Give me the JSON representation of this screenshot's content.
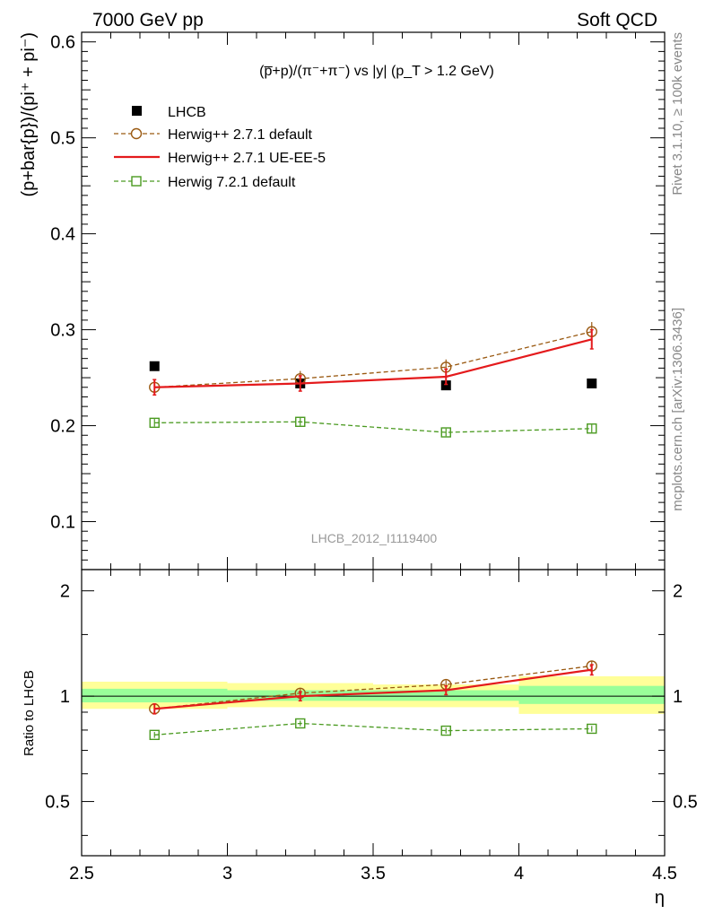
{
  "header": {
    "left": "7000 GeV pp",
    "right": "Soft QCD"
  },
  "side": {
    "rivet": "Rivet 3.1.10, ≥ 100k events",
    "mcplots": "mcplots.cern.ch [arXiv:1306.3436]"
  },
  "chart_data": [
    {
      "type": "line",
      "title": "(p̅+p)/(π⁻+π⁻) vs |y| (p_T > 1.2 GeV)",
      "ylabel": "(p+bar{p})/(pi⁺ + pi⁻)",
      "xlim": [
        2.5,
        4.5
      ],
      "ylim": [
        0.05,
        0.61
      ],
      "yticks": [
        0.1,
        0.2,
        0.3,
        0.4,
        0.5,
        0.6
      ],
      "ytick_labels": [
        "0.1",
        "0.2",
        "0.3",
        "0.4",
        "0.5",
        "0.6"
      ],
      "watermark": "LHCB_2012_I1119400",
      "legend_position": "top-left",
      "x": [
        2.75,
        3.25,
        3.75,
        4.25
      ],
      "series": [
        {
          "name": "LHCB",
          "style": "data",
          "color": "#000000",
          "values": [
            0.262,
            0.244,
            0.242,
            0.244
          ]
        },
        {
          "name": "Herwig++ 2.7.1 default",
          "style": "circle-dashed",
          "color": "#9a5a12",
          "values": [
            0.24,
            0.249,
            0.261,
            0.298
          ],
          "errors": [
            0.008,
            0.008,
            0.008,
            0.01
          ]
        },
        {
          "name": "Herwig++ 2.7.1 UE-EE-5",
          "style": "solid",
          "color": "#e41a1c",
          "values": [
            0.24,
            0.244,
            0.251,
            0.29
          ],
          "errors": [
            0.008,
            0.008,
            0.008,
            0.01
          ]
        },
        {
          "name": "Herwig 7.2.1 default",
          "style": "square-dashed",
          "color": "#4a9a20",
          "values": [
            0.203,
            0.204,
            0.193,
            0.197
          ],
          "errors": [
            0.004,
            0.004,
            0.004,
            0.004
          ]
        }
      ]
    },
    {
      "type": "line",
      "ylabel": "Ratio to LHCB",
      "xlabel": "η",
      "xlim": [
        2.5,
        4.5
      ],
      "ylim": [
        0.35,
        2.3
      ],
      "log_y": true,
      "xticks": [
        2.5,
        3,
        3.5,
        4,
        4.5
      ],
      "xtick_labels": [
        "2.5",
        "3",
        "3.5",
        "4",
        "4.5"
      ],
      "yticks": [
        0.5,
        1,
        2
      ],
      "ytick_labels": [
        "0.5",
        "1",
        "2"
      ],
      "bins": [
        [
          2.5,
          3.0
        ],
        [
          3.0,
          3.5
        ],
        [
          3.5,
          4.0
        ],
        [
          4.0,
          4.5
        ]
      ],
      "band_stat": [
        [
          0.96,
          1.05
        ],
        [
          0.97,
          1.04
        ],
        [
          0.97,
          1.04
        ],
        [
          0.95,
          1.07
        ]
      ],
      "band_total": [
        [
          0.92,
          1.1
        ],
        [
          0.93,
          1.09
        ],
        [
          0.93,
          1.08
        ],
        [
          0.89,
          1.14
        ]
      ],
      "x": [
        2.75,
        3.25,
        3.75,
        4.25
      ],
      "series": [
        {
          "name": "Herwig++ 2.7.1 default",
          "style": "circle-dashed",
          "color": "#9a5a12",
          "values": [
            0.92,
            1.02,
            1.08,
            1.22
          ],
          "errors": [
            0.03,
            0.03,
            0.03,
            0.04
          ]
        },
        {
          "name": "Herwig++ 2.7.1 UE-EE-5",
          "style": "solid",
          "color": "#e41a1c",
          "values": [
            0.92,
            1.0,
            1.04,
            1.19
          ],
          "errors": [
            0.03,
            0.03,
            0.03,
            0.04
          ]
        },
        {
          "name": "Herwig 7.2.1 default",
          "style": "square-dashed",
          "color": "#4a9a20",
          "values": [
            0.775,
            0.836,
            0.797,
            0.807
          ],
          "errors": [
            0.015,
            0.015,
            0.015,
            0.015
          ]
        }
      ]
    }
  ]
}
